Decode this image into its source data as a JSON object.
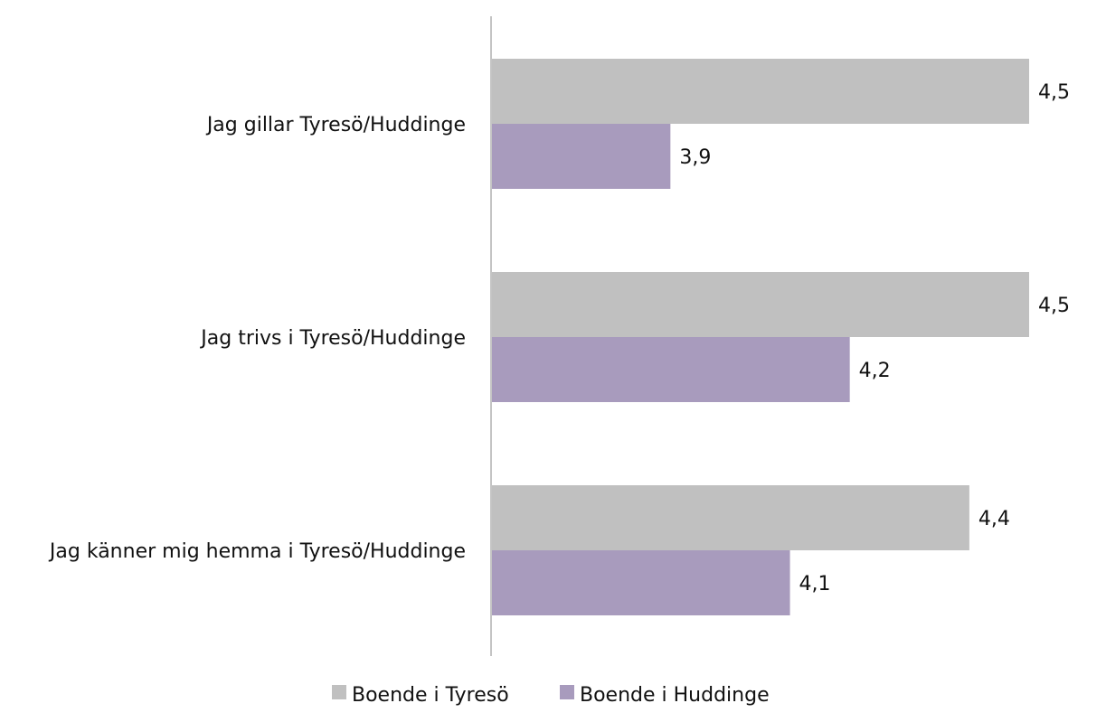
{
  "chart_data": {
    "type": "bar",
    "orientation": "horizontal",
    "categories": [
      "Jag gillar Tyresö/Huddinge",
      "Jag trivs i Tyresö/Huddinge",
      "Jag känner mig hemma i Tyresö/Huddinge"
    ],
    "series": [
      {
        "name": "Boende i Tyresö",
        "values": [
          4.5,
          4.5,
          4.4
        ],
        "labels": [
          "4,5",
          "4,5",
          "4,4"
        ],
        "color": "#c0c0c0"
      },
      {
        "name": "Boende i Huddinge",
        "values": [
          3.9,
          4.2,
          4.1
        ],
        "labels": [
          "3,9",
          "4,2",
          "4,1"
        ],
        "color": "#a89bbd"
      }
    ],
    "xlim": [
      3.6,
      4.5
    ],
    "grid": false,
    "legend_position": "bottom"
  }
}
